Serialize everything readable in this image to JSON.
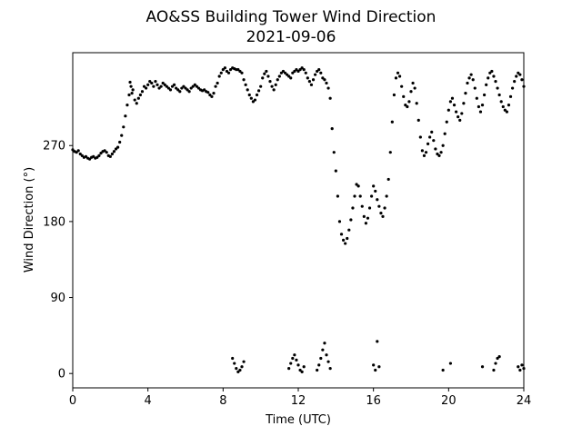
{
  "chart_data": {
    "type": "scatter",
    "title": "AO&SS Building Tower Wind Direction",
    "subtitle": "2021-09-06",
    "xlabel": "Time (UTC)",
    "ylabel": "Wind Direction (°)",
    "xlim": [
      0,
      24
    ],
    "ylim": [
      -17,
      380
    ],
    "xticks": [
      0,
      4,
      8,
      12,
      16,
      20,
      24
    ],
    "yticks": [
      0,
      90,
      180,
      270
    ],
    "grid": false,
    "legend": "none",
    "colors": {
      "marker": "#000000"
    },
    "series": [
      {
        "points_x": [
          0.0,
          0.1,
          0.2,
          0.3,
          0.4,
          0.5,
          0.6,
          0.7,
          0.8,
          0.9,
          1.0,
          1.1,
          1.2,
          1.3,
          1.4,
          1.5,
          1.6,
          1.7,
          1.8,
          1.9,
          2.0,
          2.1,
          2.2,
          2.3,
          2.4,
          2.5,
          2.6,
          2.7,
          2.8,
          2.9,
          3.0,
          3.05,
          3.1,
          3.15,
          3.2,
          3.3,
          3.4,
          3.5,
          3.6,
          3.7,
          3.8,
          3.9,
          4.0,
          4.1,
          4.2,
          4.3,
          4.4,
          4.5,
          4.6,
          4.7,
          4.8,
          4.9,
          5.0,
          5.1,
          5.2,
          5.3,
          5.4,
          5.5,
          5.6,
          5.7,
          5.8,
          5.9,
          6.0,
          6.1,
          6.2,
          6.3,
          6.4,
          6.5,
          6.6,
          6.7,
          6.8,
          6.9,
          7.0,
          7.1,
          7.2,
          7.3,
          7.4,
          7.5,
          7.6,
          7.7,
          7.8,
          7.9,
          8.0,
          8.1,
          8.2,
          8.3,
          8.4,
          8.5,
          8.6,
          8.7,
          8.8,
          8.9,
          9.0,
          9.1,
          9.2,
          9.3,
          9.4,
          9.5,
          9.6,
          9.7,
          9.8,
          9.9,
          10.0,
          10.1,
          10.2,
          10.3,
          10.4,
          10.5,
          10.6,
          10.7,
          10.8,
          10.9,
          11.0,
          11.1,
          11.2,
          11.3,
          11.4,
          11.5,
          11.6,
          11.7,
          11.8,
          11.9,
          12.0,
          12.1,
          12.2,
          12.3,
          12.4,
          12.5,
          12.6,
          12.7,
          12.8,
          12.9,
          13.0,
          13.1,
          13.2,
          13.3,
          13.4,
          13.5,
          13.6,
          13.7,
          13.8,
          13.9,
          14.0,
          14.1,
          14.2,
          14.3,
          14.4,
          14.5,
          14.6,
          14.7,
          14.8,
          14.9,
          15.0,
          15.1,
          15.2,
          15.3,
          15.4,
          15.5,
          15.6,
          15.7,
          15.8,
          15.9,
          16.0,
          16.1,
          16.2,
          16.3,
          16.4,
          16.5,
          16.6,
          16.7,
          16.8,
          16.9,
          17.0,
          17.1,
          17.2,
          17.3,
          17.4,
          17.5,
          17.6,
          17.7,
          17.8,
          17.9,
          18.0,
          18.1,
          18.2,
          18.3,
          18.4,
          18.5,
          18.6,
          18.7,
          18.8,
          18.9,
          19.0,
          19.1,
          19.2,
          19.3,
          19.4,
          19.5,
          19.6,
          19.7,
          19.8,
          19.9,
          20.0,
          20.1,
          20.2,
          20.3,
          20.4,
          20.5,
          20.6,
          20.7,
          20.8,
          20.9,
          21.0,
          21.1,
          21.2,
          21.3,
          21.4,
          21.5,
          21.6,
          21.7,
          21.8,
          21.9,
          22.0,
          22.1,
          22.2,
          22.3,
          22.4,
          22.5,
          22.6,
          22.7,
          22.8,
          22.9,
          23.0,
          23.1,
          23.2,
          23.3,
          23.4,
          23.5,
          23.6,
          23.7,
          23.8,
          23.9,
          24.0
        ],
        "points_y": [
          265,
          263,
          262,
          264,
          260,
          258,
          256,
          257,
          255,
          254,
          256,
          257,
          255,
          256,
          258,
          261,
          263,
          264,
          262,
          258,
          257,
          260,
          263,
          266,
          268,
          274,
          282,
          292,
          305,
          318,
          330,
          345,
          340,
          332,
          336,
          324,
          320,
          326,
          330,
          334,
          340,
          338,
          342,
          346,
          344,
          340,
          346,
          342,
          338,
          340,
          344,
          342,
          340,
          338,
          336,
          340,
          342,
          338,
          336,
          334,
          338,
          340,
          338,
          336,
          334,
          338,
          340,
          342,
          340,
          338,
          336,
          335,
          336,
          334,
          333,
          330,
          328,
          332,
          340,
          344,
          352,
          356,
          360,
          362,
          358,
          356,
          360,
          362,
          361,
          360,
          360,
          358,
          356,
          348,
          342,
          336,
          330,
          326,
          322,
          324,
          330,
          335,
          340,
          350,
          355,
          358,
          352,
          346,
          340,
          336,
          342,
          348,
          352,
          356,
          358,
          356,
          354,
          352,
          350,
          356,
          358,
          360,
          358,
          360,
          362,
          360,
          356,
          350,
          346,
          342,
          348,
          354,
          358,
          360,
          356,
          350,
          348,
          344,
          338,
          326,
          290,
          262,
          240,
          210,
          180,
          165,
          158,
          154,
          160,
          170,
          182,
          196,
          210,
          224,
          222,
          210,
          198,
          186,
          178,
          184,
          196,
          210,
          222,
          216,
          206,
          198,
          190,
          186,
          196,
          210,
          230,
          262,
          298,
          330,
          350,
          356,
          352,
          340,
          328,
          318,
          316,
          322,
          334,
          344,
          338,
          320,
          300,
          280,
          264,
          258,
          262,
          272,
          280,
          286,
          276,
          266,
          260,
          258,
          262,
          270,
          284,
          298,
          312,
          322,
          326,
          318,
          310,
          304,
          300,
          308,
          320,
          332,
          344,
          350,
          354,
          348,
          338,
          326,
          316,
          310,
          318,
          330,
          342,
          350,
          356,
          358,
          352,
          346,
          338,
          330,
          322,
          316,
          312,
          310,
          318,
          328,
          338,
          346,
          352,
          356,
          354,
          348,
          340,
          334,
          328,
          326,
          330,
          338,
          346,
          352,
          356,
          358,
          360,
          362,
          360
        ]
      },
      {
        "points_x": [
          8.5,
          8.6,
          8.7,
          8.8,
          8.9,
          9.0,
          9.1,
          11.5,
          11.6,
          11.7,
          11.8,
          11.9,
          12.0,
          12.1,
          12.2,
          12.3,
          13.0,
          13.1,
          13.2,
          13.3,
          13.4,
          13.5,
          13.6,
          13.7,
          16.0,
          16.1,
          16.2,
          16.3,
          19.7,
          20.1,
          21.8,
          22.4,
          22.5,
          22.6,
          22.7,
          23.7,
          23.8,
          23.9,
          24.0
        ],
        "points_y": [
          18,
          12,
          6,
          2,
          4,
          8,
          14,
          6,
          12,
          18,
          22,
          16,
          10,
          4,
          2,
          8,
          4,
          10,
          18,
          28,
          36,
          22,
          14,
          6,
          10,
          4,
          38,
          8,
          4,
          12,
          8,
          4,
          12,
          18,
          20,
          8,
          4,
          10,
          6
        ]
      }
    ]
  }
}
